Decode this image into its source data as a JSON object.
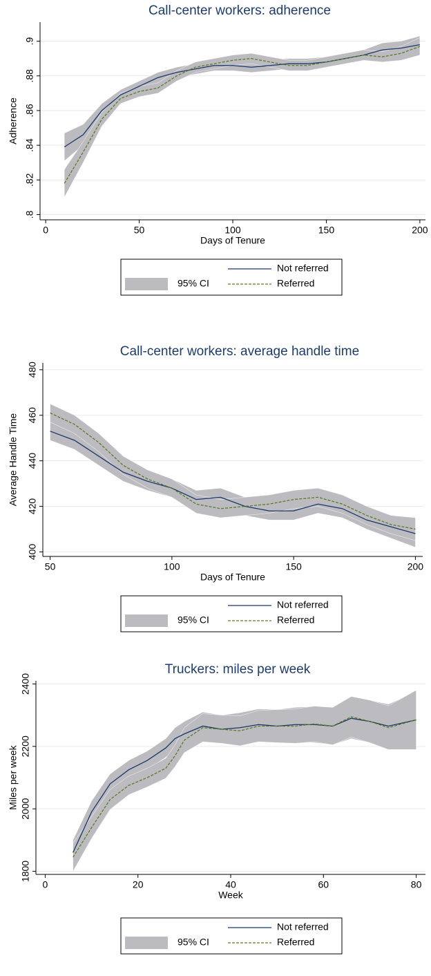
{
  "chart_data": [
    {
      "type": "line",
      "title": "Call-center workers: adherence",
      "x_label": "Days of Tenure",
      "y_label": "Adherence",
      "x": [
        10,
        20,
        30,
        40,
        50,
        60,
        70,
        80,
        90,
        100,
        110,
        120,
        130,
        140,
        150,
        160,
        170,
        180,
        190,
        200
      ],
      "xlim": [
        -3,
        203
      ],
      "xticks": [
        0,
        50,
        100,
        150,
        200
      ],
      "ylim": [
        0.797,
        0.911
      ],
      "yticks": [
        {
          "value": 0.8,
          "label": ".8"
        },
        {
          "value": 0.82,
          "label": ".82"
        },
        {
          "value": 0.84,
          "label": ".84"
        },
        {
          "value": 0.86,
          "label": ".86"
        },
        {
          "value": 0.88,
          "label": ".88"
        },
        {
          "value": 0.9,
          "label": ".9"
        }
      ],
      "grid": true,
      "ci": {
        "name": "95% CI",
        "color": "#bcbcc0"
      },
      "series": [
        {
          "name": "Not referred",
          "color": "#1a3668",
          "dash": false,
          "values": [
            0.839,
            0.846,
            0.86,
            0.869,
            0.874,
            0.879,
            0.882,
            0.884,
            0.886,
            0.886,
            0.885,
            0.886,
            0.887,
            0.887,
            0.888,
            0.89,
            0.892,
            0.895,
            0.896,
            0.898
          ],
          "lower": [
            0.831,
            0.84,
            0.856,
            0.866,
            0.871,
            0.876,
            0.879,
            0.881,
            0.883,
            0.883,
            0.882,
            0.883,
            0.884,
            0.884,
            0.885,
            0.887,
            0.889,
            0.891,
            0.892,
            0.893
          ],
          "upper": [
            0.847,
            0.852,
            0.864,
            0.872,
            0.877,
            0.882,
            0.885,
            0.887,
            0.889,
            0.889,
            0.888,
            0.889,
            0.89,
            0.89,
            0.891,
            0.893,
            0.895,
            0.899,
            0.9,
            0.903
          ]
        },
        {
          "name": "Referred",
          "color": "#5a7a24",
          "dash": true,
          "values": [
            0.818,
            0.836,
            0.855,
            0.867,
            0.871,
            0.873,
            0.88,
            0.885,
            0.887,
            0.889,
            0.89,
            0.888,
            0.886,
            0.886,
            0.888,
            0.89,
            0.892,
            0.891,
            0.893,
            0.897
          ],
          "lower": [
            0.81,
            0.83,
            0.851,
            0.864,
            0.868,
            0.87,
            0.877,
            0.882,
            0.884,
            0.886,
            0.887,
            0.885,
            0.883,
            0.883,
            0.885,
            0.887,
            0.889,
            0.888,
            0.889,
            0.892
          ],
          "upper": [
            0.826,
            0.842,
            0.859,
            0.87,
            0.874,
            0.876,
            0.883,
            0.888,
            0.89,
            0.892,
            0.893,
            0.891,
            0.889,
            0.889,
            0.891,
            0.893,
            0.895,
            0.894,
            0.897,
            0.902
          ]
        }
      ]
    },
    {
      "type": "line",
      "title": "Call-center workers: average handle time",
      "x_label": "Days of Tenure",
      "y_label": "Average Handle Time",
      "x": [
        50,
        60,
        70,
        80,
        90,
        100,
        110,
        120,
        130,
        140,
        150,
        160,
        170,
        180,
        190,
        200
      ],
      "xlim": [
        47,
        203
      ],
      "xticks": [
        50,
        100,
        150,
        200
      ],
      "ylim": [
        398,
        483
      ],
      "yticks": [
        400,
        420,
        440,
        460,
        480
      ],
      "grid": true,
      "ci": {
        "name": "95% CI",
        "color": "#bcbcc0"
      },
      "series": [
        {
          "name": "Not referred",
          "color": "#1a3668",
          "dash": false,
          "values": [
            453,
            449,
            442,
            435,
            431,
            428,
            423,
            424,
            420,
            418,
            418,
            421,
            419,
            414,
            411,
            408
          ],
          "lower": [
            449,
            445,
            438,
            431,
            427,
            424,
            419,
            420,
            416,
            414,
            414,
            417,
            415,
            410,
            406,
            402
          ],
          "upper": [
            457,
            453,
            446,
            439,
            435,
            432,
            427,
            428,
            424,
            422,
            422,
            425,
            423,
            418,
            416,
            414
          ]
        },
        {
          "name": "Referred",
          "color": "#5a7a24",
          "dash": true,
          "values": [
            461,
            456,
            448,
            438,
            432,
            428,
            421,
            419,
            420,
            421,
            423,
            424,
            421,
            416,
            412,
            410
          ],
          "lower": [
            457,
            452,
            444,
            434,
            428,
            424,
            417,
            415,
            416,
            417,
            419,
            420,
            417,
            412,
            408,
            405
          ],
          "upper": [
            465,
            460,
            452,
            442,
            436,
            432,
            425,
            423,
            424,
            425,
            427,
            428,
            425,
            420,
            416,
            415
          ]
        }
      ]
    },
    {
      "type": "line",
      "title": "Truckers: miles per week",
      "x_label": "Week",
      "y_label": "Miles per week",
      "x": [
        6,
        10,
        14,
        18,
        22,
        26,
        28,
        30,
        34,
        38,
        42,
        46,
        50,
        54,
        58,
        62,
        66,
        70,
        74,
        80
      ],
      "xlim": [
        -2,
        82
      ],
      "xticks": [
        0,
        20,
        40,
        60,
        80
      ],
      "ylim": [
        1790,
        2410
      ],
      "yticks": [
        1800,
        2000,
        2200,
        2400
      ],
      "grid": true,
      "ci": {
        "name": "95% CI",
        "color": "#bcbcc0"
      },
      "series": [
        {
          "name": "Not referred",
          "color": "#1a3668",
          "dash": false,
          "values": [
            1860,
            1990,
            2080,
            2125,
            2155,
            2195,
            2225,
            2240,
            2265,
            2255,
            2260,
            2270,
            2265,
            2270,
            2270,
            2265,
            2290,
            2280,
            2265,
            2285
          ],
          "lower": [
            1820,
            1955,
            2048,
            2095,
            2125,
            2165,
            2190,
            2200,
            2220,
            2210,
            2212,
            2220,
            2212,
            2215,
            2212,
            2205,
            2225,
            2212,
            2195,
            2195
          ],
          "upper": [
            1900,
            2025,
            2112,
            2155,
            2185,
            2225,
            2260,
            2280,
            2310,
            2300,
            2308,
            2320,
            2318,
            2325,
            2328,
            2325,
            2355,
            2348,
            2335,
            2375
          ]
        },
        {
          "name": "Referred",
          "color": "#5a7a24",
          "dash": true,
          "values": [
            1845,
            1940,
            2030,
            2075,
            2100,
            2130,
            2170,
            2220,
            2260,
            2255,
            2250,
            2265,
            2265,
            2265,
            2272,
            2265,
            2295,
            2280,
            2260,
            2285
          ],
          "lower": [
            1800,
            1905,
            1998,
            2045,
            2070,
            2098,
            2135,
            2180,
            2215,
            2210,
            2202,
            2215,
            2212,
            2210,
            2215,
            2205,
            2230,
            2212,
            2190,
            2190
          ],
          "upper": [
            1890,
            1975,
            2062,
            2105,
            2130,
            2162,
            2205,
            2260,
            2305,
            2300,
            2298,
            2315,
            2318,
            2320,
            2329,
            2325,
            2360,
            2348,
            2330,
            2380
          ]
        }
      ]
    }
  ]
}
